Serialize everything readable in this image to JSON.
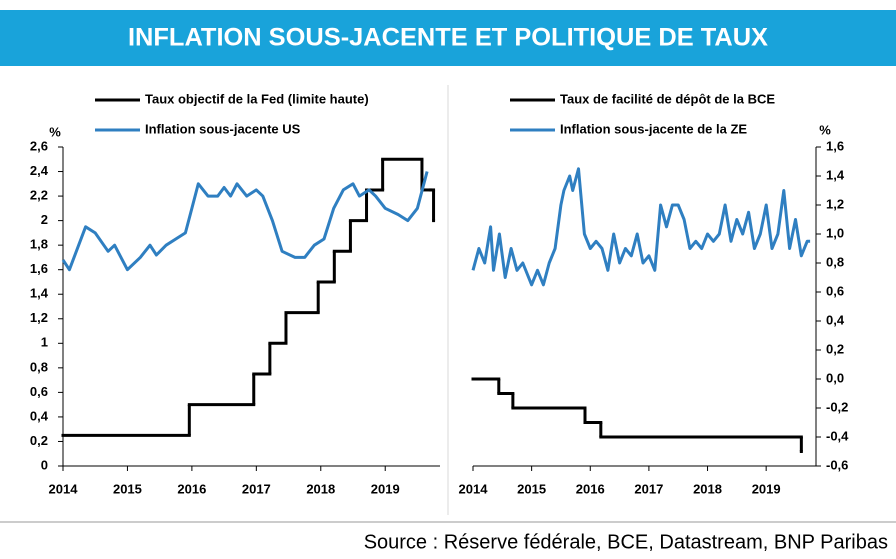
{
  "header": {
    "title": "INFLATION SOUS-JACENTE ET POLITIQUE DE TAUX"
  },
  "source": "Source : Réserve fédérale, BCE, Datastream, BNP Paribas",
  "chart_data": [
    {
      "type": "line",
      "ylabel": "%",
      "yaxis_side": "left",
      "xlim": [
        2014,
        2019.85
      ],
      "xticks": [
        2014,
        2015,
        2016,
        2017,
        2018,
        2019
      ],
      "ylim": [
        0,
        2.6
      ],
      "yticks": [
        0,
        {
          "value": 0.2,
          "label": "0,2"
        },
        {
          "value": 0.4,
          "label": "0,4"
        },
        {
          "value": 0.6,
          "label": "0,6"
        },
        {
          "value": 0.8,
          "label": "0,8"
        },
        1,
        {
          "value": 1.2,
          "label": "1,2"
        },
        {
          "value": 1.4,
          "label": "1,4"
        },
        {
          "value": 1.6,
          "label": "1,6"
        },
        {
          "value": 1.8,
          "label": "1,8"
        },
        2,
        {
          "value": 2.2,
          "label": "2,2"
        },
        {
          "value": 2.4,
          "label": "2,4"
        },
        {
          "value": 2.6,
          "label": "2,6"
        }
      ],
      "series": [
        {
          "name": "Taux objectif de la Fed (limite haute)",
          "color": "#000000",
          "step": true,
          "x": [
            2014,
            2015.96,
            2016.96,
            2017.21,
            2017.46,
            2017.96,
            2018.21,
            2018.46,
            2018.71,
            2018.96,
            2019.57,
            2019.7,
            2019.75
          ],
          "values": [
            0.25,
            0.5,
            0.75,
            1.0,
            1.25,
            1.5,
            1.75,
            2.0,
            2.25,
            2.5,
            2.25,
            2.25,
            2.0
          ]
        },
        {
          "name": "Inflation sous-jacente US",
          "color": "#2f7fc1",
          "step": false,
          "x": [
            2014,
            2014.1,
            2014.35,
            2014.5,
            2014.7,
            2014.8,
            2015.0,
            2015.2,
            2015.35,
            2015.45,
            2015.6,
            2015.75,
            2015.9,
            2016.0,
            2016.1,
            2016.25,
            2016.4,
            2016.5,
            2016.6,
            2016.7,
            2016.85,
            2017.0,
            2017.1,
            2017.25,
            2017.4,
            2017.6,
            2017.75,
            2017.9,
            2018.05,
            2018.2,
            2018.35,
            2018.5,
            2018.6,
            2018.75,
            2018.85,
            2019.0,
            2019.2,
            2019.35,
            2019.5,
            2019.65
          ],
          "values": [
            1.68,
            1.6,
            1.95,
            1.9,
            1.75,
            1.8,
            1.6,
            1.7,
            1.8,
            1.72,
            1.8,
            1.85,
            1.9,
            2.1,
            2.3,
            2.2,
            2.2,
            2.27,
            2.2,
            2.3,
            2.2,
            2.25,
            2.2,
            2.0,
            1.75,
            1.7,
            1.7,
            1.8,
            1.85,
            2.1,
            2.25,
            2.3,
            2.2,
            2.25,
            2.2,
            2.1,
            2.05,
            2.0,
            2.1,
            2.4
          ]
        }
      ]
    },
    {
      "type": "line",
      "ylabel": "%",
      "yaxis_side": "right",
      "negative_label_color": "#e00000",
      "xlim": [
        2014,
        2019.85
      ],
      "xticks": [
        2014,
        2015,
        2016,
        2017,
        2018,
        2019
      ],
      "ylim": [
        -0.6,
        1.6
      ],
      "yticks": [
        {
          "value": -0.6,
          "label": "-0,6"
        },
        {
          "value": -0.4,
          "label": "-0,4"
        },
        {
          "value": -0.2,
          "label": "-0,2"
        },
        {
          "value": 0,
          "label": "0,0"
        },
        {
          "value": 0.2,
          "label": "0,2"
        },
        {
          "value": 0.4,
          "label": "0,4"
        },
        {
          "value": 0.6,
          "label": "0,6"
        },
        {
          "value": 0.8,
          "label": "0,8"
        },
        {
          "value": 1.0,
          "label": "1,0"
        },
        {
          "value": 1.2,
          "label": "1,2"
        },
        {
          "value": 1.4,
          "label": "1,4"
        },
        {
          "value": 1.6,
          "label": "1,6"
        }
      ],
      "series": [
        {
          "name": "Taux de facilité de dépôt de la BCE",
          "color": "#000000",
          "step": true,
          "x": [
            2014,
            2014.44,
            2014.68,
            2015.91,
            2016.18,
            2019.6
          ],
          "values": [
            0,
            -0.1,
            -0.2,
            -0.3,
            -0.4,
            -0.5
          ]
        },
        {
          "name": "Inflation sous-jacente de la ZE",
          "color": "#2f7fc1",
          "step": false,
          "x": [
            2014.0,
            2014.1,
            2014.2,
            2014.3,
            2014.35,
            2014.45,
            2014.55,
            2014.65,
            2014.75,
            2014.85,
            2015.0,
            2015.1,
            2015.2,
            2015.3,
            2015.4,
            2015.5,
            2015.55,
            2015.65,
            2015.7,
            2015.8,
            2015.9,
            2016.0,
            2016.1,
            2016.2,
            2016.3,
            2016.4,
            2016.5,
            2016.6,
            2016.7,
            2016.8,
            2016.9,
            2017.0,
            2017.1,
            2017.2,
            2017.3,
            2017.4,
            2017.5,
            2017.6,
            2017.7,
            2017.8,
            2017.9,
            2018.0,
            2018.1,
            2018.2,
            2018.3,
            2018.4,
            2018.5,
            2018.6,
            2018.7,
            2018.8,
            2018.9,
            2019.0,
            2019.1,
            2019.2,
            2019.3,
            2019.4,
            2019.5,
            2019.6,
            2019.7,
            2019.75
          ],
          "values": [
            0.75,
            0.9,
            0.8,
            1.05,
            0.75,
            1.0,
            0.7,
            0.9,
            0.75,
            0.8,
            0.65,
            0.75,
            0.65,
            0.8,
            0.9,
            1.2,
            1.3,
            1.4,
            1.3,
            1.45,
            1.0,
            0.9,
            0.95,
            0.9,
            0.75,
            1.0,
            0.8,
            0.9,
            0.85,
            1.0,
            0.8,
            0.85,
            0.75,
            1.2,
            1.05,
            1.2,
            1.2,
            1.1,
            0.9,
            0.95,
            0.9,
            1.0,
            0.95,
            1.0,
            1.2,
            0.95,
            1.1,
            1.0,
            1.15,
            0.9,
            1.0,
            1.2,
            0.9,
            1.0,
            1.3,
            0.9,
            1.1,
            0.85,
            0.95,
            0.95
          ]
        }
      ]
    }
  ]
}
